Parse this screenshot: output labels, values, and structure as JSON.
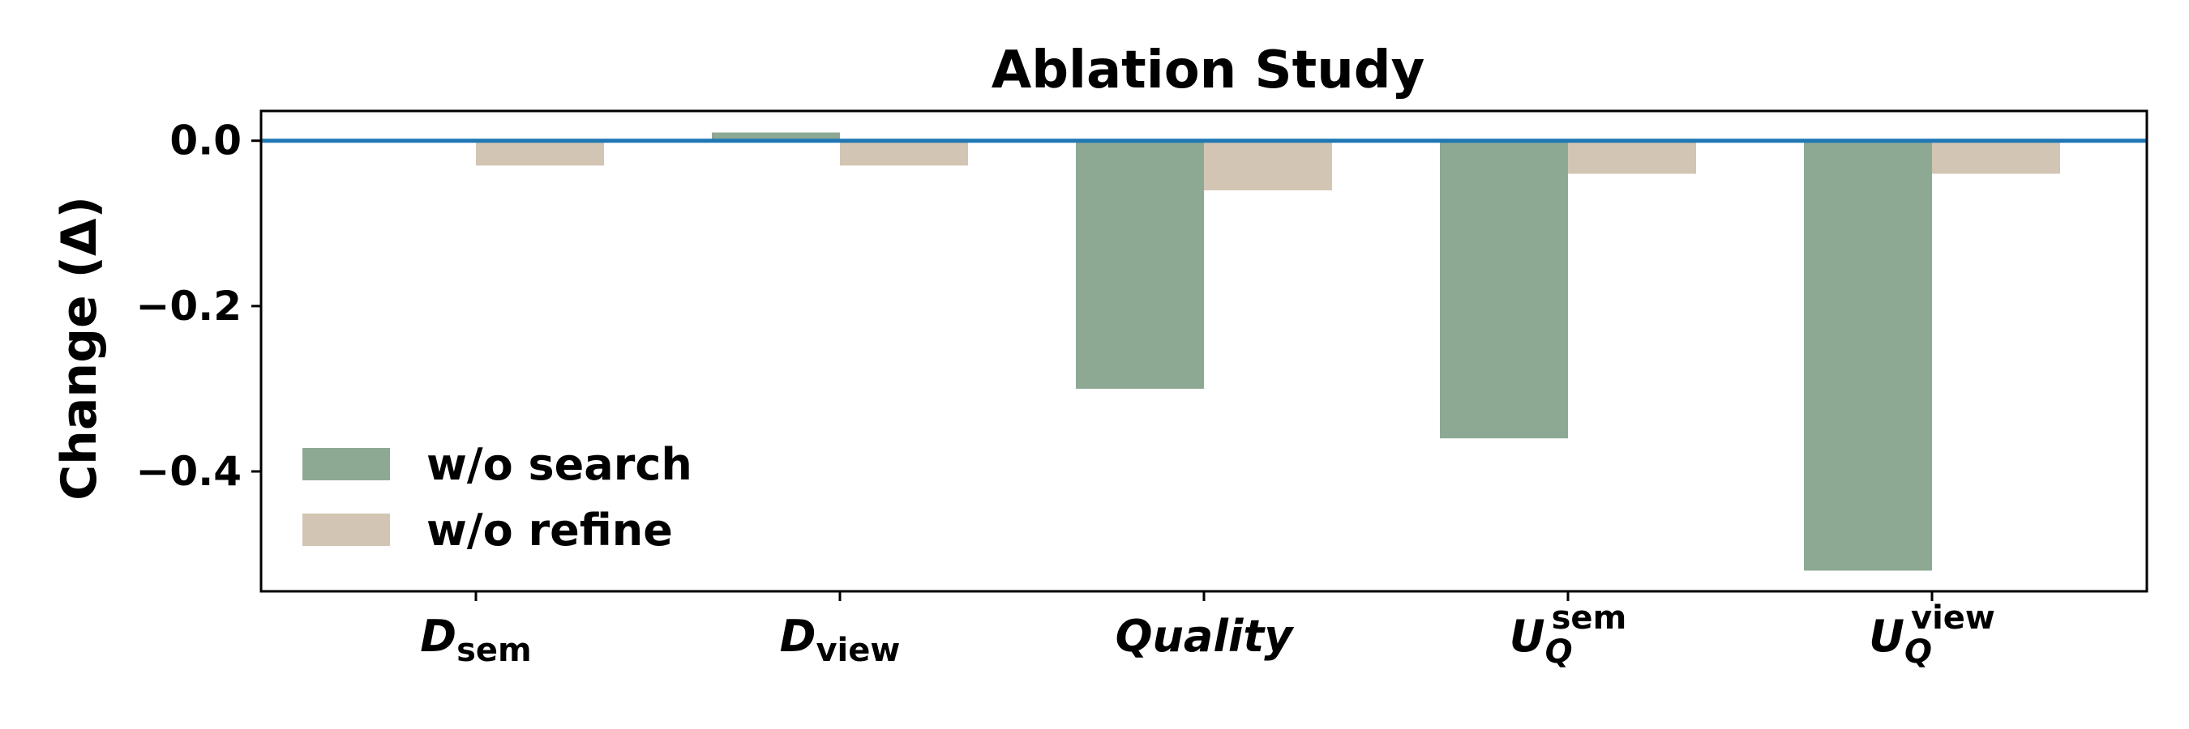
{
  "chart_data": {
    "type": "bar",
    "title": "Ablation Study",
    "xlabel": "",
    "ylabel": "Change (Δ)",
    "categories": [
      {
        "main": "D",
        "sub": "sem",
        "sup": ""
      },
      {
        "main": "D",
        "sub": "view",
        "sup": ""
      },
      {
        "main": "Quality",
        "sub": "",
        "sup": ""
      },
      {
        "main": "U",
        "sub": "Q",
        "sup": "sem"
      },
      {
        "main": "U",
        "sub": "Q",
        "sup": "view"
      }
    ],
    "series": [
      {
        "name": "w/o search",
        "color": "#8da994",
        "values": [
          0.0,
          0.01,
          -0.3,
          -0.36,
          -0.52
        ]
      },
      {
        "name": "w/o refine",
        "color": "#d3c5b3",
        "values": [
          -0.03,
          -0.03,
          -0.06,
          -0.04,
          -0.04
        ]
      }
    ],
    "ylim": [
      -0.545,
      0.036
    ],
    "yticks": [
      0.0,
      -0.2,
      -0.4
    ],
    "ytick_labels": [
      "0.0",
      "−0.2",
      "−0.4"
    ],
    "reference_line": {
      "y": 0.0,
      "color": "#1f77b4"
    },
    "grid": false,
    "legend_position": "lower-left"
  }
}
